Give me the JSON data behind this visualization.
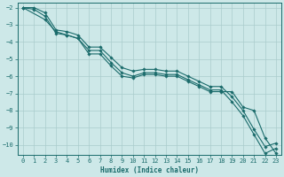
{
  "xlabel": "Humidex (Indice chaleur)",
  "background_color": "#cde8e8",
  "grid_color": "#aacccc",
  "line_color": "#1a6b6b",
  "xlim": [
    -0.5,
    23.5
  ],
  "ylim": [
    -10.6,
    -1.7
  ],
  "xticks": [
    0,
    1,
    2,
    3,
    4,
    5,
    6,
    7,
    8,
    9,
    10,
    11,
    12,
    13,
    14,
    15,
    16,
    17,
    18,
    19,
    20,
    21,
    22,
    23
  ],
  "yticks": [
    -2,
    -3,
    -4,
    -5,
    -6,
    -7,
    -8,
    -9,
    -10
  ],
  "series": [
    {
      "x": [
        0,
        1,
        2,
        3,
        4,
        5,
        6,
        7,
        8,
        9,
        10,
        11,
        12,
        13,
        14,
        15,
        16,
        17,
        18,
        19,
        20,
        21,
        22,
        23
      ],
      "y": [
        -2.0,
        -2.1,
        -2.5,
        -3.5,
        -3.6,
        -3.8,
        -4.5,
        -4.5,
        -5.2,
        -5.8,
        -6.0,
        -5.8,
        -5.8,
        -5.9,
        -5.9,
        -6.2,
        -6.5,
        -6.8,
        -6.8,
        -7.5,
        -8.3,
        -9.4,
        -10.5,
        -10.2
      ]
    },
    {
      "x": [
        0,
        2,
        3,
        4,
        5,
        6,
        7,
        8,
        9,
        10,
        11,
        12,
        13,
        14,
        15,
        16,
        17,
        18,
        19,
        20,
        21,
        22,
        23
      ],
      "y": [
        -2.0,
        -2.7,
        -3.4,
        -3.6,
        -3.8,
        -4.7,
        -4.7,
        -5.4,
        -6.0,
        -6.1,
        -5.9,
        -5.9,
        -6.0,
        -6.0,
        -6.3,
        -6.6,
        -6.9,
        -6.9,
        -6.9,
        -7.8,
        -8.0,
        -9.6,
        -10.5
      ]
    },
    {
      "x": [
        0,
        1,
        2,
        3,
        4,
        5,
        6,
        7,
        8,
        9,
        10,
        11,
        12,
        13,
        14,
        15,
        16,
        17,
        18,
        19,
        20,
        21,
        22,
        23
      ],
      "y": [
        -2.0,
        -2.0,
        -2.3,
        -3.3,
        -3.4,
        -3.6,
        -4.3,
        -4.3,
        -4.9,
        -5.5,
        -5.7,
        -5.6,
        -5.6,
        -5.7,
        -5.7,
        -6.0,
        -6.3,
        -6.6,
        -6.6,
        -7.2,
        -8.0,
        -9.1,
        -10.1,
        -9.9
      ]
    }
  ]
}
